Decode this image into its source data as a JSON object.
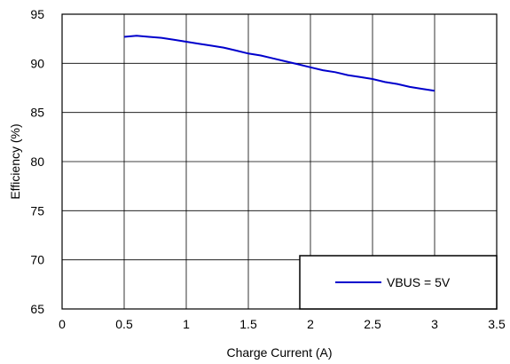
{
  "chart_data": {
    "type": "line",
    "xlabel": "Charge Current (A)",
    "ylabel": "Efficiency (%)",
    "xlim": [
      0,
      3.5
    ],
    "ylim": [
      65,
      95
    ],
    "xticks": [
      "0",
      "0.5",
      "1",
      "1.5",
      "2",
      "2.5",
      "3",
      "3.5"
    ],
    "yticks": [
      "65",
      "70",
      "75",
      "80",
      "85",
      "90",
      "95"
    ],
    "grid": true,
    "legend_position": "bottom-right",
    "series": [
      {
        "name": "VBUS = 5V",
        "color": "#0000cc",
        "x": [
          0.5,
          0.6,
          0.7,
          0.8,
          0.9,
          1.0,
          1.1,
          1.2,
          1.3,
          1.4,
          1.5,
          1.6,
          1.7,
          1.8,
          1.9,
          2.0,
          2.1,
          2.2,
          2.3,
          2.4,
          2.5,
          2.6,
          2.7,
          2.8,
          2.9,
          3.0
        ],
        "y": [
          92.7,
          92.8,
          92.7,
          92.6,
          92.4,
          92.2,
          92.0,
          91.8,
          91.6,
          91.3,
          91.0,
          90.8,
          90.5,
          90.2,
          89.9,
          89.6,
          89.3,
          89.1,
          88.8,
          88.6,
          88.4,
          88.1,
          87.9,
          87.6,
          87.4,
          87.2
        ]
      }
    ]
  }
}
